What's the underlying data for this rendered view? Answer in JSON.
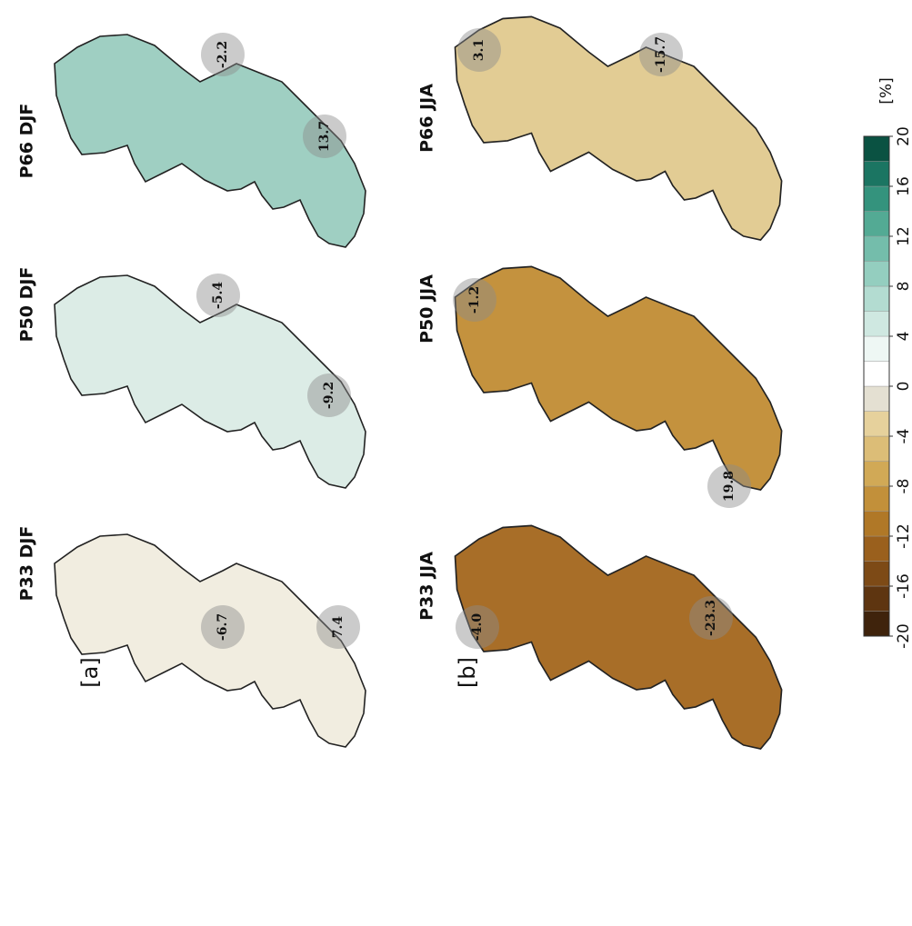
{
  "panels": [
    {
      "label": "[a]",
      "maps": [
        {
          "title": "P33 DJF",
          "color": "#f1ede0",
          "annotations": [
            "-6.7",
            "7.4"
          ]
        },
        {
          "title": "P50 DJF",
          "color": "#dcece6",
          "annotations": [
            "-5.4",
            "-9.2"
          ]
        },
        {
          "title": "P66 DJF",
          "color": "#9fcfc2",
          "annotations": [
            "-2.2",
            "13.7"
          ]
        }
      ]
    },
    {
      "label": "[b]",
      "maps": [
        {
          "title": "P33 JJA",
          "color": "#a86e28",
          "annotations": [
            "-4.0",
            "-23.3"
          ]
        },
        {
          "title": "P50 JJA",
          "color": "#c4923e",
          "annotations": [
            "-1.2",
            "19.8"
          ]
        },
        {
          "title": "P66 JJA",
          "color": "#e2cc94",
          "annotations": [
            "3.1",
            "-15.7"
          ]
        }
      ]
    }
  ],
  "colorbar": {
    "label": "[%]",
    "lim": [
      -20,
      20
    ],
    "ticks": [
      -20,
      -16,
      -12,
      -8,
      -4,
      0,
      4,
      8,
      12,
      16,
      20
    ],
    "colors": [
      "#3f230c",
      "#5e3510",
      "#7d4a16",
      "#9a601d",
      "#b07827",
      "#c2903a",
      "#d1a956",
      "#dcbd77",
      "#e6d19c",
      "#e4e0d2",
      "#ffffff",
      "#eef7f4",
      "#cfe8e1",
      "#b3dcd1",
      "#94cebf",
      "#74bdab",
      "#53aa94",
      "#34937d",
      "#1b7562",
      "#0a5242"
    ]
  }
}
